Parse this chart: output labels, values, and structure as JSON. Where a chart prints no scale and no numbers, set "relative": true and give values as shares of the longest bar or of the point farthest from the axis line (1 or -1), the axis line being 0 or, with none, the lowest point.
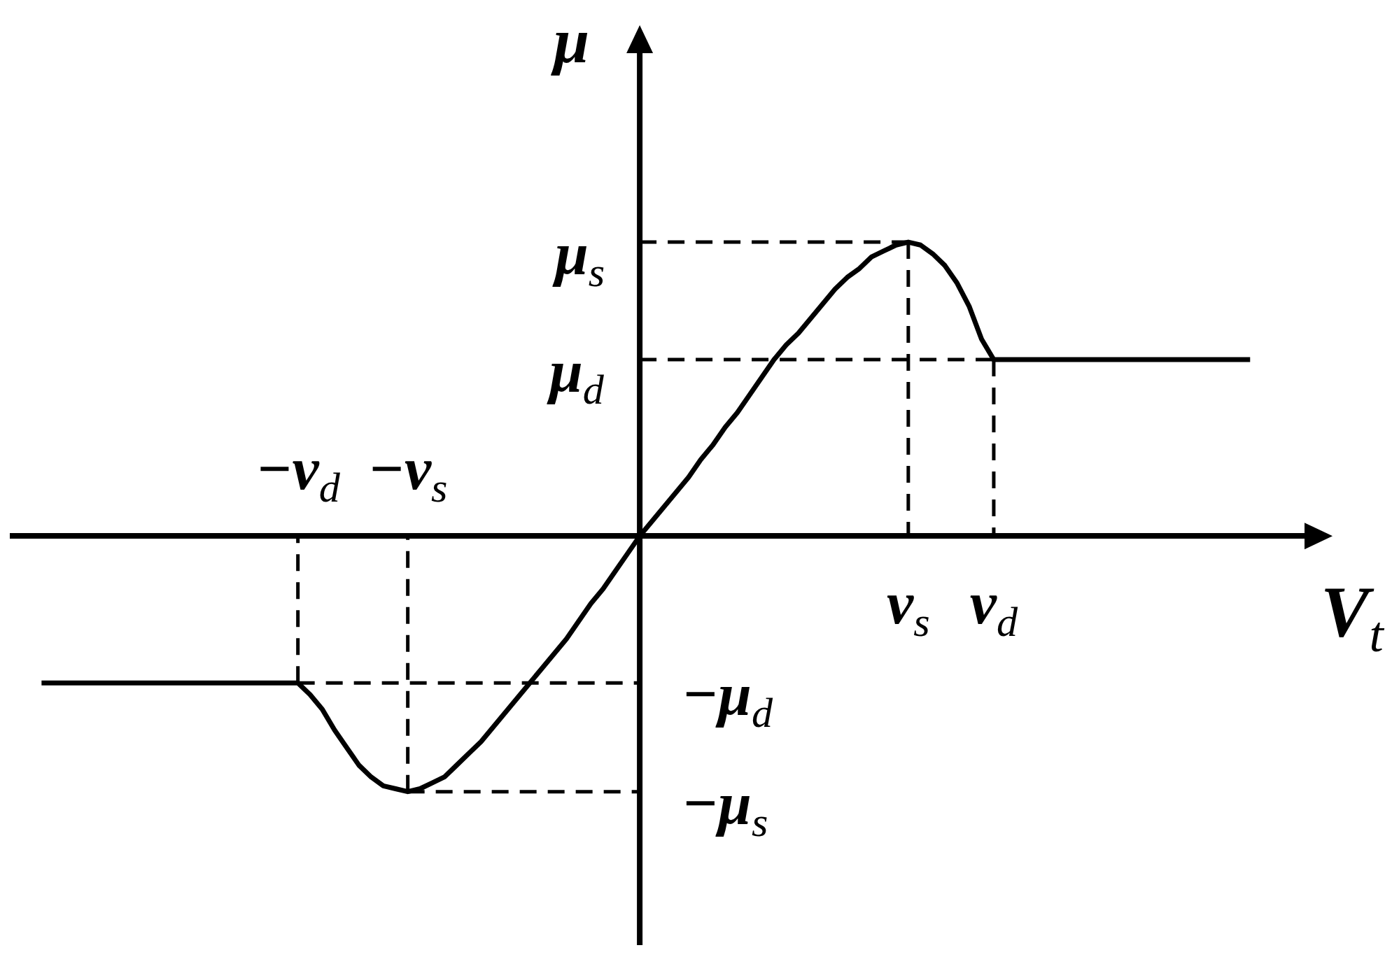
{
  "chart_data": {
    "type": "line",
    "relative": true,
    "line_style": "solid",
    "xlabel": "V$_{t}$",
    "ylabel": "μ",
    "categories": [
      null,
      null,
      null,
      null,
      null,
      null,
      null,
      null,
      null,
      null,
      null,
      null,
      null,
      null,
      null,
      null,
      null,
      null,
      null,
      null,
      null,
      null,
      "−v$_{d}$",
      null,
      null,
      null,
      null,
      null,
      null,
      null,
      null,
      "−v$_{s}$",
      null,
      null,
      null,
      null,
      null,
      null,
      null,
      null,
      null,
      null,
      null,
      null,
      null,
      null,
      null,
      null,
      null,
      null,
      null,
      null,
      null,
      null,
      null,
      null,
      null,
      null,
      null,
      null,
      null,
      null,
      null,
      null,
      null,
      null,
      null,
      null,
      null,
      null,
      null,
      null,
      "v$_{s}$",
      null,
      null,
      null,
      null,
      null,
      null,
      "v$_{d}$",
      null,
      null,
      null,
      null,
      null,
      null,
      null,
      null,
      null,
      null,
      null,
      null,
      null,
      null,
      null,
      null,
      null,
      null,
      null,
      null,
      null
    ],
    "series": [
      {
        "color": "#000000",
        "line_style": "dashed",
        "values": [
          null,
          null,
          null,
          null,
          null,
          null,
          null,
          null,
          null,
          null,
          null,
          null,
          null,
          null,
          null,
          null,
          null,
          null,
          null,
          null,
          null,
          null,
          null,
          null,
          null,
          null,
          null,
          null,
          null,
          null,
          null,
          null,
          null,
          null,
          null,
          null,
          null,
          null,
          null,
          null,
          null,
          null,
          null,
          null,
          null,
          null,
          null,
          null,
          null,
          null,
          1.0,
          1.0,
          1.0,
          1.0,
          1.0,
          1.0,
          1.0,
          1.0,
          1.0,
          1.0,
          1.0,
          1.0,
          1.0,
          1.0,
          1.0,
          1.0,
          1.0,
          1.0,
          1.0,
          1.0,
          1.0,
          1.0,
          1.0,
          null,
          null,
          null,
          null,
          null,
          null,
          null,
          null,
          null,
          null,
          null,
          null,
          null,
          null,
          null,
          null,
          null,
          null,
          null,
          null,
          null,
          null,
          null,
          null,
          null,
          null,
          null,
          null
        ]
      },
      {
        "color": "#000000",
        "line_style": "dashed",
        "values": [
          null,
          null,
          null,
          null,
          null,
          null,
          null,
          null,
          null,
          null,
          null,
          null,
          null,
          null,
          null,
          null,
          null,
          null,
          null,
          null,
          null,
          null,
          null,
          null,
          null,
          null,
          null,
          null,
          null,
          null,
          null,
          null,
          null,
          null,
          null,
          null,
          null,
          null,
          null,
          null,
          null,
          null,
          null,
          null,
          null,
          null,
          null,
          null,
          null,
          null,
          0.6,
          0.6,
          0.6,
          0.6,
          0.6,
          0.6,
          0.6,
          0.6,
          0.6,
          0.6,
          0.6,
          0.6,
          0.6,
          0.6,
          0.6,
          0.6,
          0.6,
          0.6,
          0.6,
          0.6,
          0.6,
          0.6,
          0.6,
          0.6,
          0.6,
          0.6,
          0.6,
          0.6,
          0.6,
          0.6,
          null,
          null,
          null,
          null,
          null,
          null,
          null,
          null,
          null,
          null,
          null,
          null,
          null,
          null,
          null,
          null,
          null,
          null,
          null,
          null,
          null
        ]
      },
      {
        "color": "#000000",
        "line_style": "dashed",
        "values": [
          null,
          null,
          null,
          null,
          null,
          null,
          null,
          null,
          null,
          null,
          null,
          null,
          null,
          null,
          null,
          null,
          null,
          null,
          null,
          null,
          null,
          null,
          -0.5,
          -0.5,
          -0.5,
          -0.5,
          -0.5,
          -0.5,
          -0.5,
          -0.5,
          -0.5,
          -0.5,
          -0.5,
          -0.5,
          -0.5,
          -0.5,
          -0.5,
          -0.5,
          -0.5,
          -0.5,
          -0.5,
          -0.5,
          -0.5,
          -0.5,
          -0.5,
          -0.5,
          -0.5,
          -0.5,
          -0.5,
          -0.5,
          -0.5,
          null,
          null,
          null,
          null,
          null,
          null,
          null,
          null,
          null,
          null,
          null,
          null,
          null,
          null,
          null,
          null,
          null,
          null,
          null,
          null,
          null,
          null,
          null,
          null,
          null,
          null,
          null,
          null,
          null,
          null,
          null,
          null,
          null,
          null,
          null,
          null,
          null,
          null,
          null,
          null,
          null,
          null,
          null,
          null,
          null,
          null,
          null,
          null,
          null,
          null
        ]
      },
      {
        "color": "#000000",
        "line_style": "dashed",
        "values": [
          null,
          null,
          null,
          null,
          null,
          null,
          null,
          null,
          null,
          null,
          null,
          null,
          null,
          null,
          null,
          null,
          null,
          null,
          null,
          null,
          null,
          null,
          null,
          null,
          null,
          null,
          null,
          null,
          null,
          null,
          null,
          -0.87,
          -0.87,
          -0.87,
          -0.87,
          -0.87,
          -0.87,
          -0.87,
          -0.87,
          -0.87,
          -0.87,
          -0.87,
          -0.87,
          -0.87,
          -0.87,
          -0.87,
          -0.87,
          -0.87,
          -0.87,
          -0.87,
          -0.87,
          null,
          null,
          null,
          null,
          null,
          null,
          null,
          null,
          null,
          null,
          null,
          null,
          null,
          null,
          null,
          null,
          null,
          null,
          null,
          null,
          null,
          null,
          null,
          null,
          null,
          null,
          null,
          null,
          null,
          null,
          null,
          null,
          null,
          null,
          null,
          null,
          null,
          null,
          null,
          null,
          null,
          null,
          null,
          null,
          null,
          null,
          null,
          null,
          null,
          null
        ]
      },
      {
        "color": "#000000",
        "line_style": "dashed",
        "x": [
          "v$_{s}$",
          "v$_{s}$"
        ],
        "values": [
          1.0,
          0
        ]
      },
      {
        "color": "#000000",
        "line_style": "dashed",
        "x": [
          "v$_{d}$",
          "v$_{d}$"
        ],
        "values": [
          0.6,
          0
        ]
      },
      {
        "color": "#000000",
        "line_style": "dashed",
        "x": [
          "−v$_{d}$",
          "−v$_{d}$"
        ],
        "values": [
          -0.5,
          0
        ]
      },
      {
        "color": "#000000",
        "line_style": "dashed",
        "x": [
          "−v$_{s}$",
          "−v$_{s}$"
        ],
        "values": [
          -0.87,
          0
        ]
      },
      {
        "color": "#000000",
        "values": [
          null,
          -0.5,
          -0.5,
          -0.5,
          -0.5,
          -0.5,
          -0.5,
          -0.5,
          -0.5,
          -0.5,
          -0.5,
          -0.5,
          -0.5,
          -0.5,
          -0.5,
          -0.5,
          -0.5,
          -0.5,
          -0.5,
          -0.5,
          -0.5,
          -0.5,
          -0.5,
          -0.54,
          -0.59,
          -0.66,
          -0.72,
          -0.78,
          -0.82,
          -0.85,
          -0.86,
          -0.87,
          -0.86,
          -0.84,
          -0.82,
          -0.78,
          -0.74,
          -0.7,
          -0.65,
          -0.6,
          -0.55,
          -0.5,
          -0.45,
          -0.4,
          -0.35,
          -0.29,
          -0.23,
          -0.18,
          -0.12,
          -0.06,
          0,
          0.05,
          0.1,
          0.15,
          0.2,
          0.26,
          0.31,
          0.37,
          0.42,
          0.48,
          0.54,
          0.6,
          0.65,
          0.69,
          0.74,
          0.79,
          0.84,
          0.88,
          0.91,
          0.95,
          0.97,
          0.99,
          1.0,
          0.99,
          0.96,
          0.92,
          0.86,
          0.78,
          0.67,
          0.6,
          0.6,
          0.6,
          0.6,
          0.6,
          0.6,
          0.6,
          0.6,
          0.6,
          0.6,
          0.6,
          0.6,
          0.6,
          0.6,
          0.6,
          0.6,
          0.6,
          0.6,
          0.6,
          0.6,
          0.6,
          0.6
        ]
      }
    ],
    "annotations": [
      "μ$_{s}$",
      "μ$_{d}$",
      "−μ$_{d}$",
      "−μ$_{s}$"
    ]
  }
}
